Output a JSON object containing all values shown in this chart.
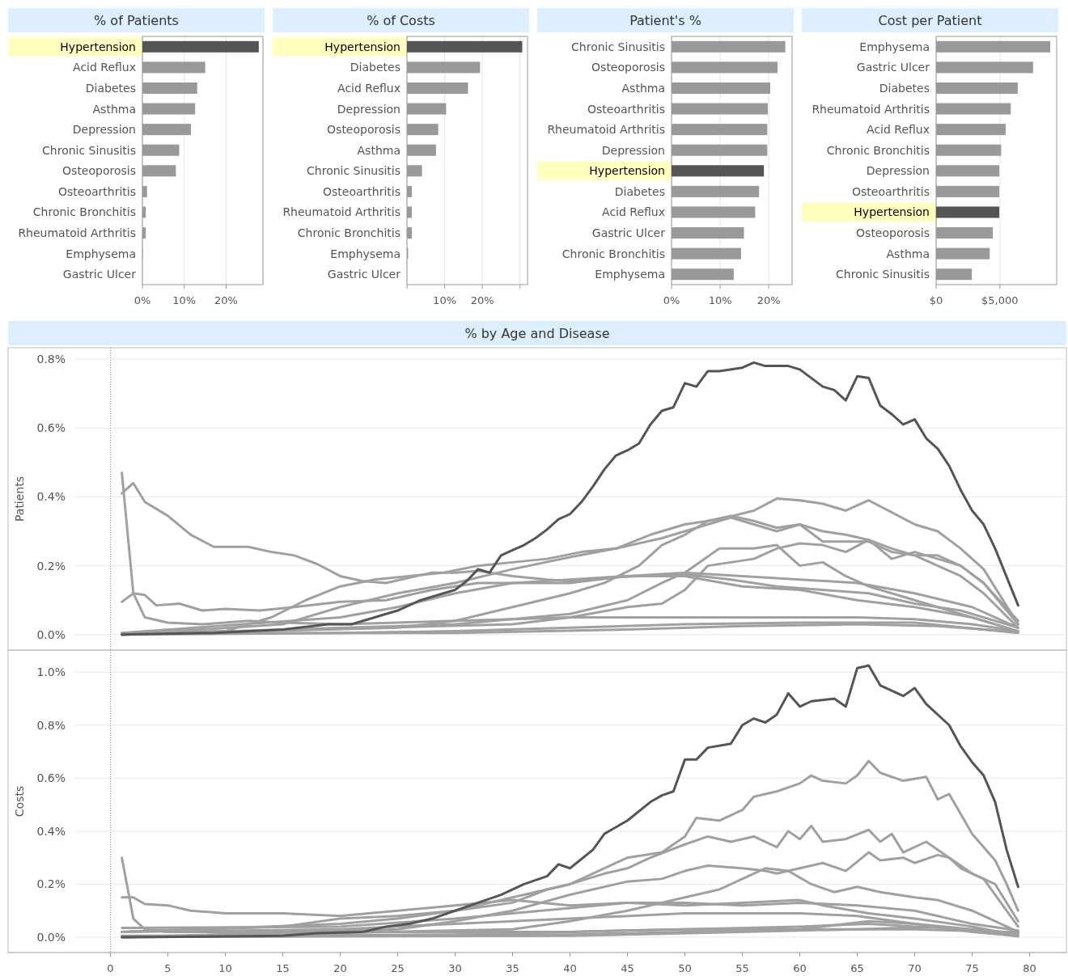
{
  "chart_data": [
    {
      "type": "bar",
      "orientation": "horizontal",
      "title": "% of Patients",
      "categories": [
        "Hypertension",
        "Acid Reflux",
        "Diabetes",
        "Asthma",
        "Depression",
        "Chronic Sinusitis",
        "Osteoporosis",
        "Osteoarthritis",
        "Chronic Bronchitis",
        "Rheumatoid Arthritis",
        "Emphysema",
        "Gastric Ulcer"
      ],
      "values": [
        27.8,
        15.0,
        13.1,
        12.6,
        11.6,
        8.8,
        8.0,
        1.1,
        0.8,
        0.8,
        0.1,
        0
      ],
      "colors": [
        "#555555",
        "#999999",
        "#999999",
        "#999999",
        "#999999",
        "#999999",
        "#999999",
        "#999999",
        "#999999",
        "#999999",
        "#999999",
        "#999999"
      ],
      "xlim": [
        0,
        28.8
      ],
      "xticks": [
        {
          "value": 0,
          "label": "0%"
        },
        {
          "value": 10,
          "label": "10%"
        },
        {
          "value": 20,
          "label": "20%"
        }
      ],
      "grid": "x"
    },
    {
      "type": "bar",
      "orientation": "horizontal",
      "title": "% of Costs",
      "categories": [
        "Hypertension",
        "Diabetes",
        "Acid Reflux",
        "Depression",
        "Osteoporosis",
        "Asthma",
        "Chronic Sinusitis",
        "Osteoarthritis",
        "Rheumatoid Arthritis",
        "Chronic Bronchitis",
        "Emphysema",
        "Gastric Ulcer"
      ],
      "values": [
        30.6,
        19.4,
        16.2,
        10.4,
        8.3,
        7.7,
        4.0,
        1.3,
        1.3,
        1.3,
        0.3,
        0
      ],
      "colors": [
        "#555555",
        "#999999",
        "#999999",
        "#999999",
        "#999999",
        "#999999",
        "#999999",
        "#999999",
        "#999999",
        "#999999",
        "#999999",
        "#999999"
      ],
      "xlim": [
        0,
        32
      ],
      "xticks": [
        {
          "value": 0,
          "label": null
        },
        {
          "value": 10,
          "label": "10%"
        },
        {
          "value": 20,
          "label": "20%"
        },
        {
          "value": 30,
          "label": null
        }
      ],
      "grid": "x"
    },
    {
      "type": "bar",
      "orientation": "horizontal",
      "title": "Patient's %",
      "categories": [
        "Chronic Sinusitis",
        "Osteoporosis",
        "Asthma",
        "Osteoarthritis",
        "Rheumatoid Arthritis",
        "Depression",
        "Hypertension",
        "Diabetes",
        "Acid Reflux",
        "Gastric Ulcer",
        "Chronic Bronchitis",
        "Emphysema"
      ],
      "values": [
        23.4,
        21.8,
        20.3,
        19.8,
        19.7,
        19.7,
        19.0,
        18.0,
        17.2,
        14.9,
        14.3,
        12.8
      ],
      "colors": [
        "#999999",
        "#999999",
        "#999999",
        "#999999",
        "#999999",
        "#999999",
        "#555555",
        "#999999",
        "#999999",
        "#999999",
        "#999999",
        "#999999"
      ],
      "xlim": [
        0,
        24.8
      ],
      "xticks": [
        {
          "value": 0,
          "label": "0%"
        },
        {
          "value": 10,
          "label": "10%"
        },
        {
          "value": 20,
          "label": "20%"
        }
      ],
      "grid": "x"
    },
    {
      "type": "bar",
      "orientation": "horizontal",
      "title": "Cost per Patient",
      "categories": [
        "Emphysema",
        "Gastric Ulcer",
        "Diabetes",
        "Rheumatoid Arthritis",
        "Acid Reflux",
        "Chronic Bronchitis",
        "Depression",
        "Osteoarthritis",
        "Hypertension",
        "Osteoporosis",
        "Asthma",
        "Chronic Sinusitis"
      ],
      "values": [
        8950,
        7600,
        6400,
        5850,
        5450,
        5100,
        4950,
        4950,
        4950,
        4450,
        4200,
        2800
      ],
      "colors": [
        "#999999",
        "#999999",
        "#999999",
        "#999999",
        "#999999",
        "#999999",
        "#999999",
        "#999999",
        "#555555",
        "#999999",
        "#999999",
        "#999999"
      ],
      "xlim": [
        0,
        9450
      ],
      "xticks": [
        {
          "value": 0,
          "label": "$0"
        },
        {
          "value": 5000,
          "label": "$5,000"
        }
      ],
      "grid": "x"
    },
    {
      "type": "line",
      "title": "% by Age and Disease",
      "ylabel": "Patients",
      "xlim": [
        -8.9,
        83.2
      ],
      "ylim": [
        -0.045,
        0.833
      ],
      "yticks": [
        {
          "value": 0,
          "label": "0.0%"
        },
        {
          "value": 0.2,
          "label": "0.2%"
        },
        {
          "value": 0.4,
          "label": "0.4%"
        },
        {
          "value": 0.6,
          "label": "0.6%"
        },
        {
          "value": 0.8,
          "label": "0.8%"
        }
      ],
      "grid": "y",
      "tick_labels": "y",
      "ref_lines": [
        {
          "axis": "x",
          "value": 0,
          "line_style": "dotted",
          "color": "#888888"
        }
      ],
      "series": [
        {
          "color": "#a0a0a0",
          "x": [
            1,
            2,
            3,
            5,
            7,
            9,
            12,
            14,
            16,
            18,
            20,
            22,
            24,
            26,
            28,
            30,
            32,
            35,
            38,
            40,
            43,
            46,
            50,
            54,
            58,
            62,
            66,
            70,
            74,
            79
          ],
          "values": [
            0.41,
            0.44,
            0.385,
            0.345,
            0.29,
            0.255,
            0.255,
            0.24,
            0.23,
            0.205,
            0.17,
            0.155,
            0.15,
            0.165,
            0.18,
            0.18,
            0.185,
            0.17,
            0.16,
            0.155,
            0.165,
            0.17,
            0.175,
            0.16,
            0.14,
            0.13,
            0.12,
            0.09,
            0.07,
            0.02
          ]
        },
        {
          "color": "#a0a0a0",
          "x": [
            1,
            2,
            3,
            5,
            8,
            12,
            15,
            20,
            25,
            30,
            35,
            40,
            45,
            50,
            55,
            60,
            65,
            70,
            75,
            79
          ],
          "values": [
            0.47,
            0.12,
            0.05,
            0.035,
            0.03,
            0.04,
            0.035,
            0.03,
            0.035,
            0.04,
            0.045,
            0.05,
            0.05,
            0.05,
            0.05,
            0.05,
            0.05,
            0.045,
            0.03,
            0.01
          ]
        },
        {
          "color": "#a0a0a0",
          "x": [
            1,
            2,
            3,
            4,
            6,
            8,
            10,
            13,
            16,
            20,
            24,
            28,
            32,
            36,
            40,
            45,
            50,
            55,
            60,
            65,
            70,
            75,
            79
          ],
          "values": [
            0.095,
            0.12,
            0.115,
            0.085,
            0.09,
            0.07,
            0.075,
            0.07,
            0.08,
            0.095,
            0.1,
            0.13,
            0.15,
            0.15,
            0.15,
            0.17,
            0.18,
            0.17,
            0.16,
            0.15,
            0.12,
            0.08,
            0.02
          ]
        },
        {
          "color": "#a0a0a0",
          "x": [
            1,
            10,
            14,
            17,
            20,
            23,
            26,
            29,
            32,
            35,
            38,
            41,
            44,
            47,
            50,
            53,
            56,
            58,
            60,
            62,
            64,
            66,
            68,
            70,
            72,
            74,
            76,
            79
          ],
          "values": [
            0.005,
            0.01,
            0.05,
            0.1,
            0.14,
            0.16,
            0.17,
            0.18,
            0.2,
            0.21,
            0.22,
            0.24,
            0.25,
            0.29,
            0.32,
            0.335,
            0.36,
            0.395,
            0.39,
            0.38,
            0.36,
            0.39,
            0.355,
            0.32,
            0.3,
            0.25,
            0.19,
            0.03
          ]
        },
        {
          "color": "#a0a0a0",
          "x": [
            1,
            15,
            20,
            25,
            30,
            35,
            40,
            44,
            48,
            51,
            54,
            56,
            58,
            60,
            62,
            64,
            66,
            68,
            70,
            72,
            74,
            76,
            79
          ],
          "values": [
            0,
            0.03,
            0.08,
            0.12,
            0.15,
            0.19,
            0.225,
            0.25,
            0.28,
            0.31,
            0.34,
            0.32,
            0.3,
            0.32,
            0.27,
            0.27,
            0.27,
            0.24,
            0.23,
            0.23,
            0.2,
            0.15,
            0.04
          ]
        },
        {
          "color": "#a0a0a0",
          "x": [
            1,
            25,
            30,
            35,
            40,
            43,
            46,
            48,
            50,
            52,
            54,
            56,
            58,
            60,
            62,
            64,
            66,
            68,
            70,
            72,
            74,
            76,
            79
          ],
          "values": [
            0,
            0.02,
            0.04,
            0.08,
            0.12,
            0.15,
            0.2,
            0.26,
            0.29,
            0.33,
            0.345,
            0.33,
            0.31,
            0.32,
            0.3,
            0.29,
            0.275,
            0.22,
            0.24,
            0.22,
            0.2,
            0.15,
            0.03
          ]
        },
        {
          "color": "#a0a0a0",
          "x": [
            1,
            35,
            40,
            45,
            48,
            50,
            52,
            54,
            56,
            58,
            60,
            62,
            64,
            66,
            68,
            70,
            72,
            74,
            76,
            79
          ],
          "values": [
            0,
            0.03,
            0.05,
            0.08,
            0.09,
            0.13,
            0.2,
            0.21,
            0.22,
            0.25,
            0.265,
            0.26,
            0.24,
            0.275,
            0.25,
            0.23,
            0.2,
            0.17,
            0.12,
            0.02
          ]
        },
        {
          "color": "#a0a0a0",
          "x": [
            1,
            30,
            40,
            45,
            48,
            50,
            53,
            56,
            58,
            60,
            62,
            64,
            66,
            68,
            70,
            74,
            79
          ],
          "values": [
            0,
            0.03,
            0.06,
            0.1,
            0.15,
            0.18,
            0.25,
            0.25,
            0.26,
            0.2,
            0.21,
            0.17,
            0.14,
            0.12,
            0.1,
            0.06,
            0.01
          ]
        },
        {
          "color": "#a0a0a0",
          "x": [
            1,
            20,
            25,
            30,
            35,
            40,
            45,
            50,
            55,
            60,
            65,
            70,
            75,
            79
          ],
          "values": [
            0.005,
            0.05,
            0.08,
            0.12,
            0.15,
            0.16,
            0.17,
            0.17,
            0.14,
            0.13,
            0.1,
            0.08,
            0.05,
            0.01
          ]
        },
        {
          "color": "#a0a0a0",
          "x": [
            1,
            20,
            30,
            40,
            50,
            60,
            70,
            79
          ],
          "values": [
            0,
            0.005,
            0.01,
            0.02,
            0.03,
            0.035,
            0.035,
            0.005
          ]
        },
        {
          "color": "#a0a0a0",
          "x": [
            1,
            30,
            45,
            55,
            65,
            72,
            79
          ],
          "values": [
            0.003,
            0.005,
            0.015,
            0.025,
            0.03,
            0.025,
            0.008
          ]
        },
        {
          "color": "#555555",
          "x": [
            1,
            9,
            15,
            19,
            21,
            23,
            25,
            27,
            29,
            30,
            31,
            32,
            33,
            34,
            35,
            36,
            37,
            38,
            39,
            40,
            41,
            42,
            43,
            44,
            45,
            46,
            47,
            48,
            49,
            50,
            51,
            52,
            53,
            55,
            56,
            57,
            59,
            60,
            62,
            63,
            64,
            65,
            66,
            67,
            68,
            69,
            70,
            71,
            72,
            73,
            74,
            75,
            76,
            77,
            79
          ],
          "values": [
            0,
            0.005,
            0.015,
            0.03,
            0.03,
            0.05,
            0.07,
            0.1,
            0.12,
            0.13,
            0.155,
            0.19,
            0.18,
            0.23,
            0.245,
            0.26,
            0.28,
            0.305,
            0.335,
            0.35,
            0.385,
            0.43,
            0.48,
            0.52,
            0.535,
            0.555,
            0.61,
            0.65,
            0.66,
            0.73,
            0.72,
            0.765,
            0.765,
            0.775,
            0.79,
            0.78,
            0.78,
            0.77,
            0.72,
            0.71,
            0.68,
            0.75,
            0.745,
            0.665,
            0.64,
            0.61,
            0.625,
            0.57,
            0.54,
            0.49,
            0.42,
            0.36,
            0.32,
            0.25,
            0.085
          ]
        }
      ]
    },
    {
      "type": "line",
      "ylabel": "Costs",
      "xlim": [
        -8.9,
        83.2
      ],
      "ylim": [
        -0.058,
        1.083
      ],
      "xticks": [
        0,
        5,
        10,
        15,
        20,
        25,
        30,
        35,
        40,
        45,
        50,
        55,
        60,
        65,
        70,
        75,
        80
      ],
      "yticks": [
        {
          "value": 0,
          "label": "0.0%"
        },
        {
          "value": 0.2,
          "label": "0.2%"
        },
        {
          "value": 0.4,
          "label": "0.4%"
        },
        {
          "value": 0.6,
          "label": "0.6%"
        },
        {
          "value": 0.8,
          "label": "0.8%"
        },
        {
          "value": 1.0,
          "label": "1.0%"
        }
      ],
      "grid": "y",
      "ref_lines": [
        {
          "axis": "x",
          "value": 0,
          "line_style": "dotted",
          "color": "#888888"
        }
      ],
      "series": [
        {
          "color": "#a0a0a0",
          "x": [
            1,
            20,
            25,
            30,
            35,
            40,
            45,
            48,
            50,
            51,
            53,
            55,
            56,
            58,
            60,
            61,
            62,
            64,
            65,
            66,
            67,
            69,
            71,
            72,
            73,
            75,
            77,
            78,
            79
          ],
          "values": [
            0.02,
            0.05,
            0.07,
            0.1,
            0.15,
            0.2,
            0.3,
            0.32,
            0.38,
            0.45,
            0.44,
            0.48,
            0.53,
            0.55,
            0.58,
            0.61,
            0.59,
            0.58,
            0.61,
            0.665,
            0.62,
            0.59,
            0.605,
            0.52,
            0.54,
            0.39,
            0.29,
            0.2,
            0.1
          ]
        },
        {
          "color": "#a0a0a0",
          "x": [
            1,
            2,
            3,
            5,
            10,
            20,
            30,
            40,
            50,
            60,
            70,
            79
          ],
          "values": [
            0.3,
            0.07,
            0.03,
            0.02,
            0.02,
            0.02,
            0.02,
            0.02,
            0.03,
            0.03,
            0.03,
            0.018
          ]
        },
        {
          "color": "#a0a0a0",
          "x": [
            1,
            2,
            3,
            5,
            7,
            10,
            15,
            20,
            25,
            30,
            35,
            40,
            45,
            50,
            55,
            60,
            65,
            70,
            75,
            79
          ],
          "values": [
            0.15,
            0.15,
            0.125,
            0.12,
            0.1,
            0.09,
            0.09,
            0.08,
            0.1,
            0.12,
            0.14,
            0.12,
            0.13,
            0.13,
            0.12,
            0.13,
            0.12,
            0.1,
            0.05,
            0.025
          ]
        },
        {
          "color": "#a0a0a0",
          "x": [
            1,
            15,
            20,
            25,
            30,
            35,
            38,
            40,
            43,
            45,
            47,
            50,
            52,
            54,
            56,
            58,
            59,
            60,
            61,
            62,
            64,
            66,
            67,
            68,
            69,
            71,
            73,
            75,
            77,
            79
          ],
          "values": [
            0.02,
            0.04,
            0.07,
            0.08,
            0.1,
            0.13,
            0.18,
            0.2,
            0.24,
            0.26,
            0.3,
            0.35,
            0.38,
            0.36,
            0.38,
            0.34,
            0.4,
            0.37,
            0.42,
            0.36,
            0.37,
            0.405,
            0.36,
            0.39,
            0.32,
            0.36,
            0.3,
            0.24,
            0.2,
            0.06
          ]
        },
        {
          "color": "#a0a0a0",
          "x": [
            1,
            25,
            30,
            35,
            40,
            45,
            48,
            50,
            52,
            55,
            57,
            58,
            60,
            62,
            64,
            66,
            67,
            69,
            70,
            72,
            73,
            74,
            76,
            79
          ],
          "values": [
            0,
            0.03,
            0.06,
            0.1,
            0.16,
            0.21,
            0.22,
            0.25,
            0.27,
            0.26,
            0.25,
            0.24,
            0.26,
            0.28,
            0.25,
            0.32,
            0.29,
            0.3,
            0.28,
            0.31,
            0.3,
            0.26,
            0.22,
            0.04
          ]
        },
        {
          "color": "#a0a0a0",
          "x": [
            1,
            35,
            40,
            45,
            50,
            53,
            55,
            57,
            59,
            61,
            63,
            65,
            67,
            70,
            72,
            75,
            79
          ],
          "values": [
            0,
            0.03,
            0.06,
            0.1,
            0.15,
            0.18,
            0.22,
            0.26,
            0.25,
            0.2,
            0.17,
            0.19,
            0.17,
            0.15,
            0.14,
            0.1,
            0.02
          ]
        },
        {
          "color": "#a0a0a0",
          "x": [
            1,
            20,
            30,
            35,
            40,
            45,
            50,
            55,
            60,
            62,
            66,
            70,
            75,
            79
          ],
          "values": [
            0.035,
            0.04,
            0.07,
            0.09,
            0.11,
            0.13,
            0.12,
            0.13,
            0.14,
            0.12,
            0.09,
            0.07,
            0.04,
            0.006
          ]
        },
        {
          "color": "#a0a0a0",
          "x": [
            1,
            20,
            30,
            40,
            50,
            60,
            65,
            70,
            75,
            79
          ],
          "values": [
            0.02,
            0.03,
            0.05,
            0.07,
            0.09,
            0.09,
            0.08,
            0.05,
            0.03,
            0.015
          ]
        },
        {
          "color": "#a0a0a0",
          "x": [
            1,
            30,
            40,
            50,
            60,
            66,
            70,
            75,
            79
          ],
          "values": [
            0.005,
            0.01,
            0.02,
            0.03,
            0.04,
            0.05,
            0.04,
            0.03,
            0.012
          ]
        },
        {
          "color": "#a0a0a0",
          "x": [
            1,
            40,
            50,
            60,
            66,
            70,
            75,
            79
          ],
          "values": [
            0,
            0.01,
            0.02,
            0.03,
            0.06,
            0.05,
            0.02,
            0.005
          ]
        },
        {
          "color": "#a0a0a0",
          "x": [
            1,
            40,
            55,
            65,
            72,
            79
          ],
          "values": [
            0.002,
            0.005,
            0.02,
            0.03,
            0.04,
            0.003
          ]
        },
        {
          "color": "#555555",
          "x": [
            1,
            10,
            15,
            18,
            22,
            24,
            26,
            28,
            30,
            32,
            34,
            36,
            38,
            39,
            40,
            42,
            43,
            45,
            47,
            48,
            49,
            50,
            51,
            52,
            54,
            55,
            56,
            57,
            58,
            59,
            60,
            61,
            63,
            64,
            65,
            66,
            67,
            68,
            69,
            70,
            71,
            73,
            74,
            75,
            76,
            77,
            78,
            79
          ],
          "values": [
            0,
            0.003,
            0.005,
            0.015,
            0.02,
            0.04,
            0.05,
            0.07,
            0.1,
            0.13,
            0.16,
            0.2,
            0.23,
            0.275,
            0.26,
            0.33,
            0.39,
            0.44,
            0.51,
            0.535,
            0.55,
            0.67,
            0.67,
            0.715,
            0.73,
            0.8,
            0.825,
            0.81,
            0.84,
            0.92,
            0.87,
            0.89,
            0.9,
            0.87,
            1.015,
            1.025,
            0.95,
            0.93,
            0.91,
            0.94,
            0.88,
            0.8,
            0.72,
            0.66,
            0.61,
            0.51,
            0.33,
            0.19
          ]
        }
      ]
    }
  ]
}
